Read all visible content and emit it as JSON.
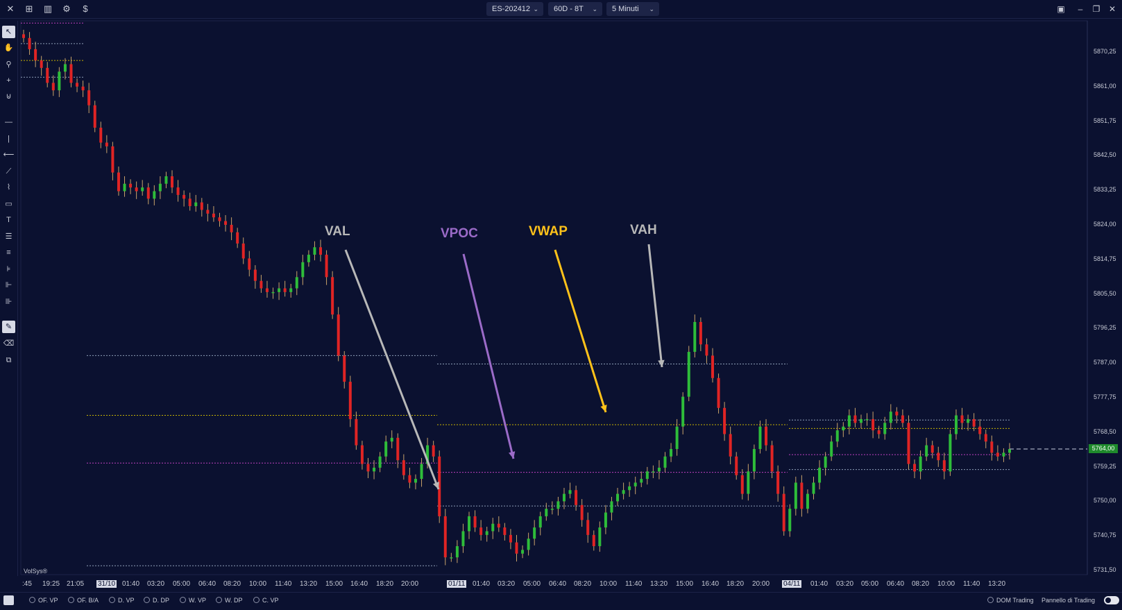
{
  "topbar": {
    "icons": [
      "close-icon",
      "layout-icon",
      "chart-type-icon",
      "settings-icon",
      "dollar-icon"
    ],
    "symbol": "ES-202412",
    "template": "60D - 8T",
    "timeframe": "5 Minuti",
    "window_controls": [
      "maximize-icon",
      "minimize-icon",
      "restore-icon",
      "close-icon"
    ]
  },
  "left_toolbar": {
    "tools": [
      "pointer-icon",
      "hand-icon",
      "zoom-icon",
      "crosshair-icon",
      "magnet-icon",
      "horizontal-line-icon",
      "vertical-line-icon",
      "ray-icon",
      "trendline-icon",
      "brush-icon",
      "rectangle-icon",
      "text-icon",
      "list-icon",
      "lines-icon",
      "fib-icon",
      "profile-icon",
      "volume-profile-icon",
      "draw-mode-icon",
      "eraser-icon",
      "layers-icon"
    ]
  },
  "chart_data": {
    "type": "candlestick",
    "symbol": "ES-202412",
    "timeframe": "5 Minuti",
    "y_ticks": [
      "5870,25",
      "5861,00",
      "5851,75",
      "5842,50",
      "5833,25",
      "5824,00",
      "5814,75",
      "5805,50",
      "5796,25",
      "5787,00",
      "5777,75",
      "5768,50",
      "5764,00",
      "5759,25",
      "5750,00",
      "5740,75",
      "5731,50"
    ],
    "ylim": [
      5731.5,
      5876
    ],
    "current_price": "5764,00",
    "x_ticks": [
      ":45",
      "19:25",
      "21:05",
      "31/10",
      "01:40",
      "03:20",
      "05:00",
      "06:40",
      "08:20",
      "10:00",
      "11:40",
      "13:20",
      "15:00",
      "16:40",
      "18:20",
      "20:00",
      "01/11",
      "01:40",
      "03:20",
      "05:00",
      "06:40",
      "08:20",
      "10:00",
      "11:40",
      "13:20",
      "15:00",
      "16:40",
      "18:20",
      "20:00",
      "04/11",
      "01:40",
      "03:20",
      "05:00",
      "06:40",
      "08:20",
      "10:00",
      "11:40",
      "13:20"
    ],
    "highlighted_x_ticks": [
      "31/10",
      "01/11",
      "04/11"
    ],
    "price_path": [
      5874,
      5871,
      5868,
      5866,
      5862,
      5860,
      5865,
      5867,
      5862,
      5861,
      5860,
      5856,
      5850,
      5846,
      5845,
      5838,
      5833,
      5835,
      5834,
      5833,
      5834,
      5831,
      5833,
      5835,
      5837,
      5834,
      5832,
      5831,
      5829,
      5830,
      5828,
      5827,
      5826,
      5825,
      5824,
      5822,
      5819,
      5815,
      5812,
      5809,
      5807,
      5806,
      5806,
      5807,
      5806,
      5807,
      5810,
      5814,
      5816,
      5818,
      5816,
      5810,
      5800,
      5789,
      5782,
      5772,
      5765,
      5760,
      5758,
      5759,
      5762,
      5766,
      5767,
      5761,
      5757,
      5755,
      5756,
      5760,
      5765,
      5762,
      5746,
      5735,
      5735,
      5738,
      5742,
      5746,
      5743,
      5741,
      5742,
      5744,
      5743,
      5741,
      5739,
      5736,
      5737,
      5740,
      5743,
      5746,
      5748,
      5748,
      5750,
      5752,
      5753,
      5749,
      5745,
      5741,
      5738,
      5743,
      5747,
      5750,
      5752,
      5753,
      5754,
      5755,
      5756,
      5758,
      5758,
      5759,
      5762,
      5764,
      5770,
      5778,
      5790,
      5798,
      5792,
      5789,
      5783,
      5775,
      5768,
      5762,
      5757,
      5752,
      5758,
      5764,
      5770,
      5765,
      5758,
      5752,
      5742,
      5748,
      5755,
      5748,
      5752,
      5755,
      5759,
      5762,
      5766,
      5769,
      5770,
      5773,
      5771,
      5772,
      5772,
      5769,
      5768,
      5771,
      5774,
      5773,
      5771,
      5760,
      5758,
      5762,
      5765,
      5763,
      5761,
      5758,
      5768,
      5773,
      5771,
      5772,
      5770,
      5768,
      5766,
      5763,
      5762,
      5763,
      5764
    ],
    "levels": [
      {
        "label": "VAH",
        "color": "#8fa0b8",
        "segments": [
          [
            5872.5,
            0,
            3
          ],
          [
            5789,
            1,
            3
          ],
          [
            5786.75,
            5,
            9
          ],
          [
            5771.75,
            9,
            11
          ]
        ]
      },
      {
        "label": "VWAP",
        "color": "#c8b400",
        "segments": [
          [
            5868,
            0,
            3
          ],
          [
            5773,
            1,
            3
          ],
          [
            5770.5,
            5,
            9
          ],
          [
            5769.5,
            9,
            11
          ]
        ]
      },
      {
        "label": "VPOC",
        "color": "#c040c0",
        "segments": [
          [
            5878,
            0,
            3
          ],
          [
            5760.25,
            1,
            3
          ],
          [
            5757.75,
            5,
            9
          ],
          [
            5762.5,
            9,
            11
          ]
        ]
      },
      {
        "label": "VAL",
        "color": "#8fa0b8",
        "segments": [
          [
            5863.5,
            0,
            3
          ],
          [
            5732.75,
            1,
            3
          ],
          [
            5748.75,
            5,
            9
          ],
          [
            5758.5,
            9,
            11
          ]
        ]
      }
    ],
    "annotations": [
      {
        "label": "VAL",
        "color": "#b8b8b8"
      },
      {
        "label": "VPOC",
        "color": "#9b6bc8"
      },
      {
        "label": "VWAP",
        "color": "#ffc21a"
      },
      {
        "label": "VAH",
        "color": "#b8b8b8"
      }
    ],
    "colors": {
      "background": "#0b1130",
      "up": "#2ebd3a",
      "down": "#e02424",
      "wick": "#c9a36a"
    }
  },
  "watermark": "VolSys®",
  "bottombar": {
    "indicators": [
      "OF. VP",
      "OF. B/A",
      "D. VP",
      "D. DP",
      "W. VP",
      "W. DP",
      "C. VP"
    ],
    "dom_label": "DOM Trading",
    "panel_label": "Pannello di Trading"
  }
}
